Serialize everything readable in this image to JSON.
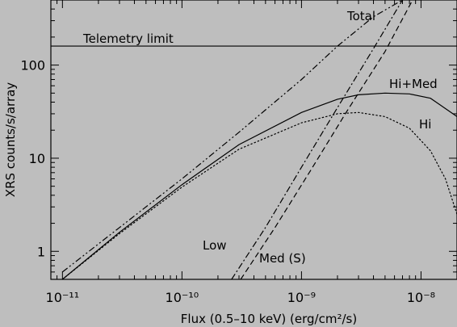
{
  "chart_data": {
    "type": "line",
    "xscale": "log",
    "yscale": "log",
    "xlim": [
      8e-12,
      2e-08
    ],
    "ylim": [
      0.5,
      500
    ],
    "grid": false,
    "background": "#bebebe",
    "line_color": "#000000",
    "xlabel": "Flux (0.5–10 keV) (erg/cm²/s)",
    "ylabel": "XRS counts/s/array",
    "xticks": [
      {
        "value": 1e-11,
        "label": "10⁻¹¹"
      },
      {
        "value": 1e-10,
        "label": "10⁻¹⁰"
      },
      {
        "value": 1e-09,
        "label": "10⁻⁹"
      },
      {
        "value": 1e-08,
        "label": "10⁻⁸"
      }
    ],
    "yticks": [
      {
        "value": 1,
        "label": "1"
      },
      {
        "value": 10,
        "label": "10"
      },
      {
        "value": 100,
        "label": "100"
      }
    ],
    "hline": {
      "y": 160,
      "label": "Telemetry limit",
      "style": "solid"
    },
    "series": [
      {
        "name": "Total",
        "style": "dash-dot-dot",
        "x": [
          1e-11,
          3e-11,
          1e-10,
          3e-10,
          1e-09,
          2e-09,
          4e-09,
          7e-09
        ],
        "y": [
          0.6,
          1.8,
          6,
          19,
          70,
          160,
          330,
          500
        ]
      },
      {
        "name": "Hi+Med",
        "style": "solid",
        "x": [
          1e-11,
          3e-11,
          1e-10,
          3e-10,
          1e-09,
          2e-09,
          3e-09,
          5e-09,
          8e-09,
          1.2e-08,
          2e-08
        ],
        "y": [
          0.5,
          1.6,
          5.2,
          14,
          31,
          43,
          48,
          50,
          49,
          44,
          28
        ]
      },
      {
        "name": "Hi",
        "style": "dotted",
        "x": [
          1e-11,
          3e-11,
          1e-10,
          3e-10,
          1e-09,
          2e-09,
          3e-09,
          5e-09,
          8e-09,
          1.2e-08,
          1.6e-08,
          2e-08
        ],
        "y": [
          0.5,
          1.55,
          4.9,
          12.5,
          24,
          30,
          31,
          28,
          21,
          12,
          6,
          2.5
        ]
      },
      {
        "name": "Low",
        "style": "dash-dot",
        "x": [
          2.6e-10,
          5e-10,
          1e-09,
          2e-09,
          4e-09,
          7e-09
        ],
        "y": [
          0.5,
          1.8,
          8,
          35,
          150,
          500
        ]
      },
      {
        "name": "Med (S)",
        "style": "dashed",
        "x": [
          3.1e-10,
          6e-10,
          1.2e-09,
          2.4e-09,
          5e-09,
          8.5e-09
        ],
        "y": [
          0.5,
          1.8,
          7.5,
          32,
          140,
          500
        ]
      }
    ],
    "labels": {
      "total": "Total",
      "hi_med": "Hi+Med",
      "hi": "Hi",
      "low": "Low",
      "med": "Med (S)",
      "telemetry": "Telemetry limit"
    }
  }
}
